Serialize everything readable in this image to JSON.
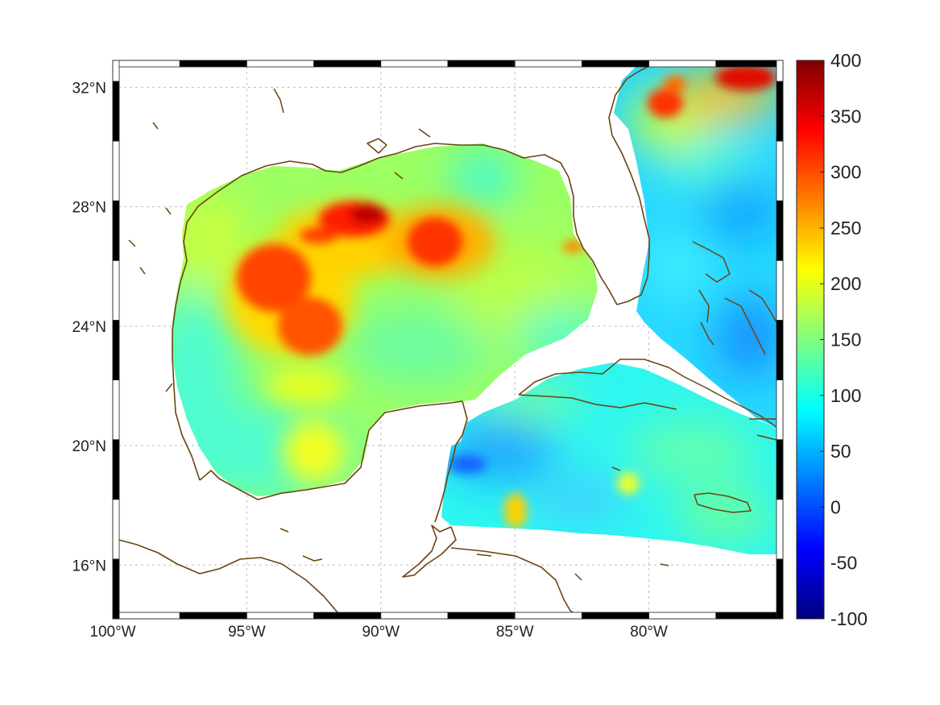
{
  "map": {
    "lon_range": [
      -100,
      -75
    ],
    "lat_range": [
      14.2,
      32.9
    ],
    "lon_ticks": [
      {
        "value": -100,
        "label": "100°W"
      },
      {
        "value": -95,
        "label": "95°W"
      },
      {
        "value": -90,
        "label": "90°W"
      },
      {
        "value": -85,
        "label": "85°W"
      },
      {
        "value": -80,
        "label": "80°W"
      }
    ],
    "lat_ticks": [
      {
        "value": 16,
        "label": "16°N"
      },
      {
        "value": 20,
        "label": "20°N"
      },
      {
        "value": 24,
        "label": "24°N"
      },
      {
        "value": 28,
        "label": "28°N"
      },
      {
        "value": 32,
        "label": "32°N"
      }
    ],
    "grid": true,
    "colormap": "jet",
    "coastline_color": "#6b4410"
  },
  "colorbar": {
    "min": -100,
    "max": 400,
    "ticks": [
      "400",
      "350",
      "300",
      "250",
      "200",
      "150",
      "100",
      "50",
      "0",
      "-50",
      "-100"
    ],
    "colors": [
      "#00007f",
      "#0000ff",
      "#007fff",
      "#00ffff",
      "#7fff7f",
      "#ffff00",
      "#ff7f00",
      "#ff0000",
      "#7f0000"
    ]
  }
}
